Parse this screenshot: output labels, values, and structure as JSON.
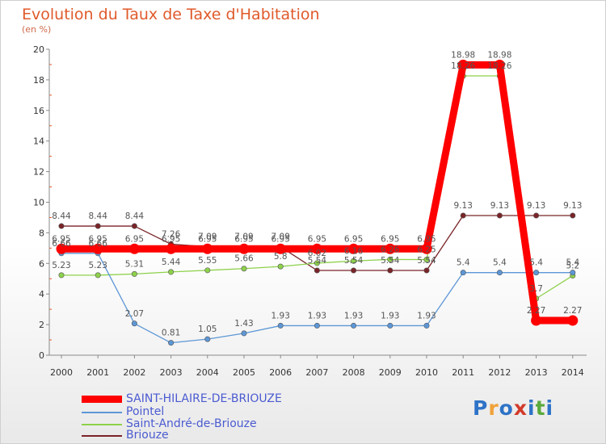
{
  "title": "Evolution du Taux de Taxe d'Habitation",
  "unit": "(en %)",
  "logo": {
    "text": "Proxiti",
    "colors": [
      "#2e73c7",
      "#f0a23a",
      "#2e73c7",
      "#d23a2a",
      "#2e73c7",
      "#5aaa3c",
      "#2e73c7"
    ]
  },
  "chart_data": {
    "type": "line",
    "categories": [
      "2000",
      "2001",
      "2002",
      "2003",
      "2004",
      "2005",
      "2006",
      "2007",
      "2008",
      "2009",
      "2010",
      "2011",
      "2012",
      "2013",
      "2014"
    ],
    "ylim": [
      0,
      20
    ],
    "yticks": [
      0,
      2,
      4,
      6,
      8,
      10,
      12,
      14,
      16,
      18,
      20
    ],
    "grid": false,
    "legend_position": "bottom-left",
    "series": [
      {
        "name": "SAINT-HILAIRE-DE-BRIOUZE",
        "color": "#ff0000",
        "values": [
          6.95,
          6.95,
          6.95,
          6.95,
          6.95,
          6.95,
          6.95,
          6.95,
          6.95,
          6.95,
          6.95,
          18.98,
          18.98,
          2.27,
          2.27
        ],
        "labels": [
          "6.95",
          "6.95",
          "6.95",
          "6.95",
          "6.95",
          "6.95",
          "6.95",
          "6.95",
          "6.95",
          "6.95",
          "6.95",
          "18.98",
          "18.98",
          "2.27",
          "2.27"
        ]
      },
      {
        "name": "Pointel",
        "color": "#5d97d6",
        "values": [
          6.66,
          6.66,
          2.07,
          0.81,
          1.05,
          1.43,
          1.93,
          1.93,
          1.93,
          1.93,
          1.93,
          5.4,
          5.4,
          5.4,
          5.4
        ],
        "labels": [
          "6.66",
          "6.66",
          "2.07",
          "0.81",
          "1.05",
          "1.43",
          "1.93",
          "1.93",
          "1.93",
          "1.93",
          "1.93",
          "5.4",
          "5.4",
          "5.4",
          "5.4"
        ]
      },
      {
        "name": "Saint-André-de-Briouze",
        "color": "#8ed14b",
        "values": [
          5.23,
          5.23,
          5.31,
          5.44,
          5.55,
          5.66,
          5.8,
          6.02,
          6.16,
          6.26,
          6.25,
          18.26,
          18.26,
          3.7,
          5.2
        ],
        "labels": [
          "5.23",
          "5.23",
          "5.31",
          "5.44",
          "5.55",
          "5.66",
          "5.8",
          "6.02",
          "6.16",
          "6.26",
          "6.25",
          "18.26",
          "18.26",
          "3.7",
          "5.2"
        ]
      },
      {
        "name": "Briouze",
        "color": "#7a2428",
        "values": [
          8.44,
          8.44,
          8.44,
          7.26,
          7.09,
          7.09,
          7.09,
          5.54,
          5.54,
          5.54,
          5.54,
          9.13,
          9.13,
          9.13,
          9.13
        ],
        "labels": [
          "8.44",
          "8.44",
          "8.44",
          "7.26",
          "7.09",
          "7.09",
          "7.09",
          "5.54",
          "5.54",
          "5.54",
          "5.54",
          "9.13",
          "9.13",
          "9.13",
          "9.13"
        ]
      }
    ]
  }
}
